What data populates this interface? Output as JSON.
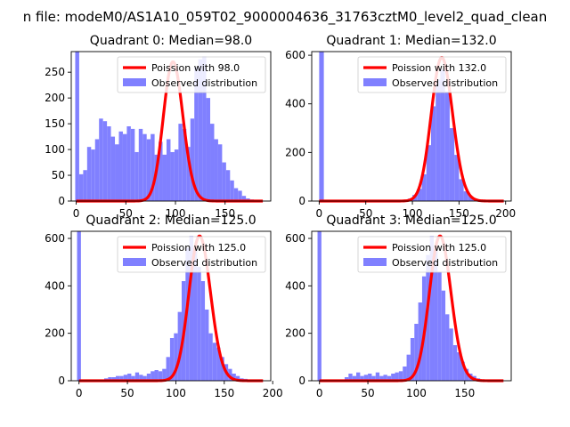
{
  "suptitle": "n file: modeM0/AS1A10_059T02_9000004636_31763cztM0_level2_quad_clean",
  "colors": {
    "observed": "#8080ff",
    "poisson": "#ff0000",
    "axis": "#000000"
  },
  "chart_data": [
    {
      "type": "bar",
      "title": "Quadrant 0: Median=98.0",
      "xlabel": "",
      "ylabel": "",
      "xlim": [
        -5,
        196
      ],
      "ylim": [
        0,
        290
      ],
      "xticks": [
        0,
        50,
        100,
        150
      ],
      "yticks": [
        0,
        50,
        100,
        150,
        200,
        250
      ],
      "bin_width": 4,
      "legend": {
        "placement": "top-right",
        "entries": [
          "Poission with 98.0",
          "Observed distribution"
        ]
      },
      "series": [
        {
          "name": "Observed distribution",
          "kind": "histogram",
          "bin_start": [
            -1,
            3,
            7,
            11,
            15,
            19,
            23,
            27,
            31,
            35,
            39,
            43,
            47,
            51,
            55,
            59,
            63,
            67,
            71,
            75,
            79,
            83,
            87,
            91,
            95,
            99,
            103,
            107,
            111,
            115,
            119,
            123,
            127,
            131,
            135,
            139,
            143,
            147,
            151,
            155,
            159,
            163,
            167,
            171,
            175,
            179,
            183
          ],
          "values": [
            290,
            52,
            60,
            105,
            100,
            120,
            160,
            155,
            145,
            125,
            110,
            135,
            130,
            145,
            140,
            95,
            140,
            130,
            120,
            130,
            90,
            115,
            90,
            120,
            95,
            100,
            150,
            140,
            105,
            160,
            260,
            275,
            280,
            200,
            150,
            120,
            110,
            75,
            60,
            40,
            25,
            20,
            10,
            5,
            3,
            2,
            1
          ]
        },
        {
          "name": "Poission with 98.0",
          "kind": "poisson",
          "mean": 98.0,
          "scale": 270
        }
      ]
    },
    {
      "type": "bar",
      "title": "Quadrant 1: Median=132.0",
      "xlabel": "",
      "ylabel": "",
      "xlim": [
        -8,
        206
      ],
      "ylim": [
        0,
        615
      ],
      "xticks": [
        0,
        50,
        100,
        150,
        200
      ],
      "yticks": [
        0,
        200,
        400,
        600
      ],
      "bin_width": 5,
      "legend": {
        "placement": "top-right",
        "entries": [
          "Poission with 132.0",
          "Observed distribution"
        ]
      },
      "series": [
        {
          "name": "Observed distribution",
          "kind": "histogram",
          "bin_start": [
            0,
            90,
            95,
            100,
            105,
            110,
            115,
            120,
            125,
            130,
            135,
            140,
            145,
            150,
            155,
            160,
            165,
            170,
            175,
            180
          ],
          "values": [
            615,
            5,
            10,
            25,
            50,
            110,
            230,
            390,
            500,
            540,
            450,
            300,
            190,
            90,
            40,
            20,
            10,
            5,
            3,
            2
          ]
        },
        {
          "name": "Poission with 132.0",
          "kind": "poisson",
          "mean": 132.0,
          "scale": 590
        }
      ]
    },
    {
      "type": "bar",
      "title": "Quadrant 2: Median=125.0",
      "xlabel": "",
      "ylabel": "",
      "xlim": [
        -8,
        198
      ],
      "ylim": [
        0,
        630
      ],
      "xticks": [
        0,
        50,
        100,
        150,
        200
      ],
      "yticks": [
        0,
        200,
        400,
        600
      ],
      "bin_width": 4,
      "legend": {
        "placement": "top-right",
        "entries": [
          "Poission with 125.0",
          "Observed distribution"
        ]
      },
      "series": [
        {
          "name": "Observed distribution",
          "kind": "histogram",
          "bin_start": [
            -2,
            26,
            30,
            34,
            38,
            42,
            46,
            50,
            54,
            58,
            62,
            66,
            70,
            74,
            78,
            82,
            86,
            90,
            94,
            98,
            102,
            106,
            110,
            114,
            118,
            122,
            126,
            130,
            134,
            138,
            142,
            146,
            150,
            154,
            158,
            162,
            166,
            170,
            174,
            178,
            182,
            186
          ],
          "values": [
            630,
            10,
            15,
            15,
            20,
            20,
            25,
            30,
            20,
            35,
            25,
            20,
            30,
            40,
            45,
            40,
            50,
            100,
            180,
            200,
            290,
            420,
            560,
            610,
            560,
            480,
            420,
            300,
            200,
            160,
            140,
            100,
            70,
            50,
            30,
            20,
            10,
            8,
            5,
            4,
            3,
            2
          ]
        },
        {
          "name": "Poission with 125.0",
          "kind": "poisson",
          "mean": 125.0,
          "scale": 610
        }
      ]
    },
    {
      "type": "bar",
      "title": "Quadrant 3: Median=125.0",
      "xlabel": "",
      "ylabel": "",
      "xlim": [
        -8,
        198
      ],
      "ylim": [
        0,
        630
      ],
      "xticks": [
        0,
        50,
        100,
        150
      ],
      "yticks": [
        0,
        200,
        400,
        600
      ],
      "bin_width": 4,
      "legend": {
        "placement": "top-right",
        "entries": [
          "Poission with 125.0",
          "Observed distribution"
        ]
      },
      "series": [
        {
          "name": "Observed distribution",
          "kind": "histogram",
          "bin_start": [
            -2,
            26,
            30,
            34,
            38,
            42,
            46,
            50,
            54,
            58,
            62,
            66,
            70,
            74,
            78,
            82,
            86,
            90,
            94,
            98,
            102,
            106,
            110,
            114,
            118,
            122,
            126,
            130,
            134,
            138,
            142,
            146,
            150,
            154,
            158,
            162,
            166,
            170,
            174,
            178
          ],
          "values": [
            630,
            15,
            30,
            20,
            35,
            20,
            25,
            30,
            20,
            35,
            20,
            25,
            20,
            30,
            35,
            40,
            60,
            110,
            180,
            240,
            330,
            440,
            530,
            610,
            550,
            460,
            380,
            280,
            220,
            150,
            120,
            80,
            50,
            30,
            20,
            10,
            5,
            4,
            3,
            2
          ]
        },
        {
          "name": "Poission with 125.0",
          "kind": "poisson",
          "mean": 125.0,
          "scale": 610
        }
      ]
    }
  ]
}
